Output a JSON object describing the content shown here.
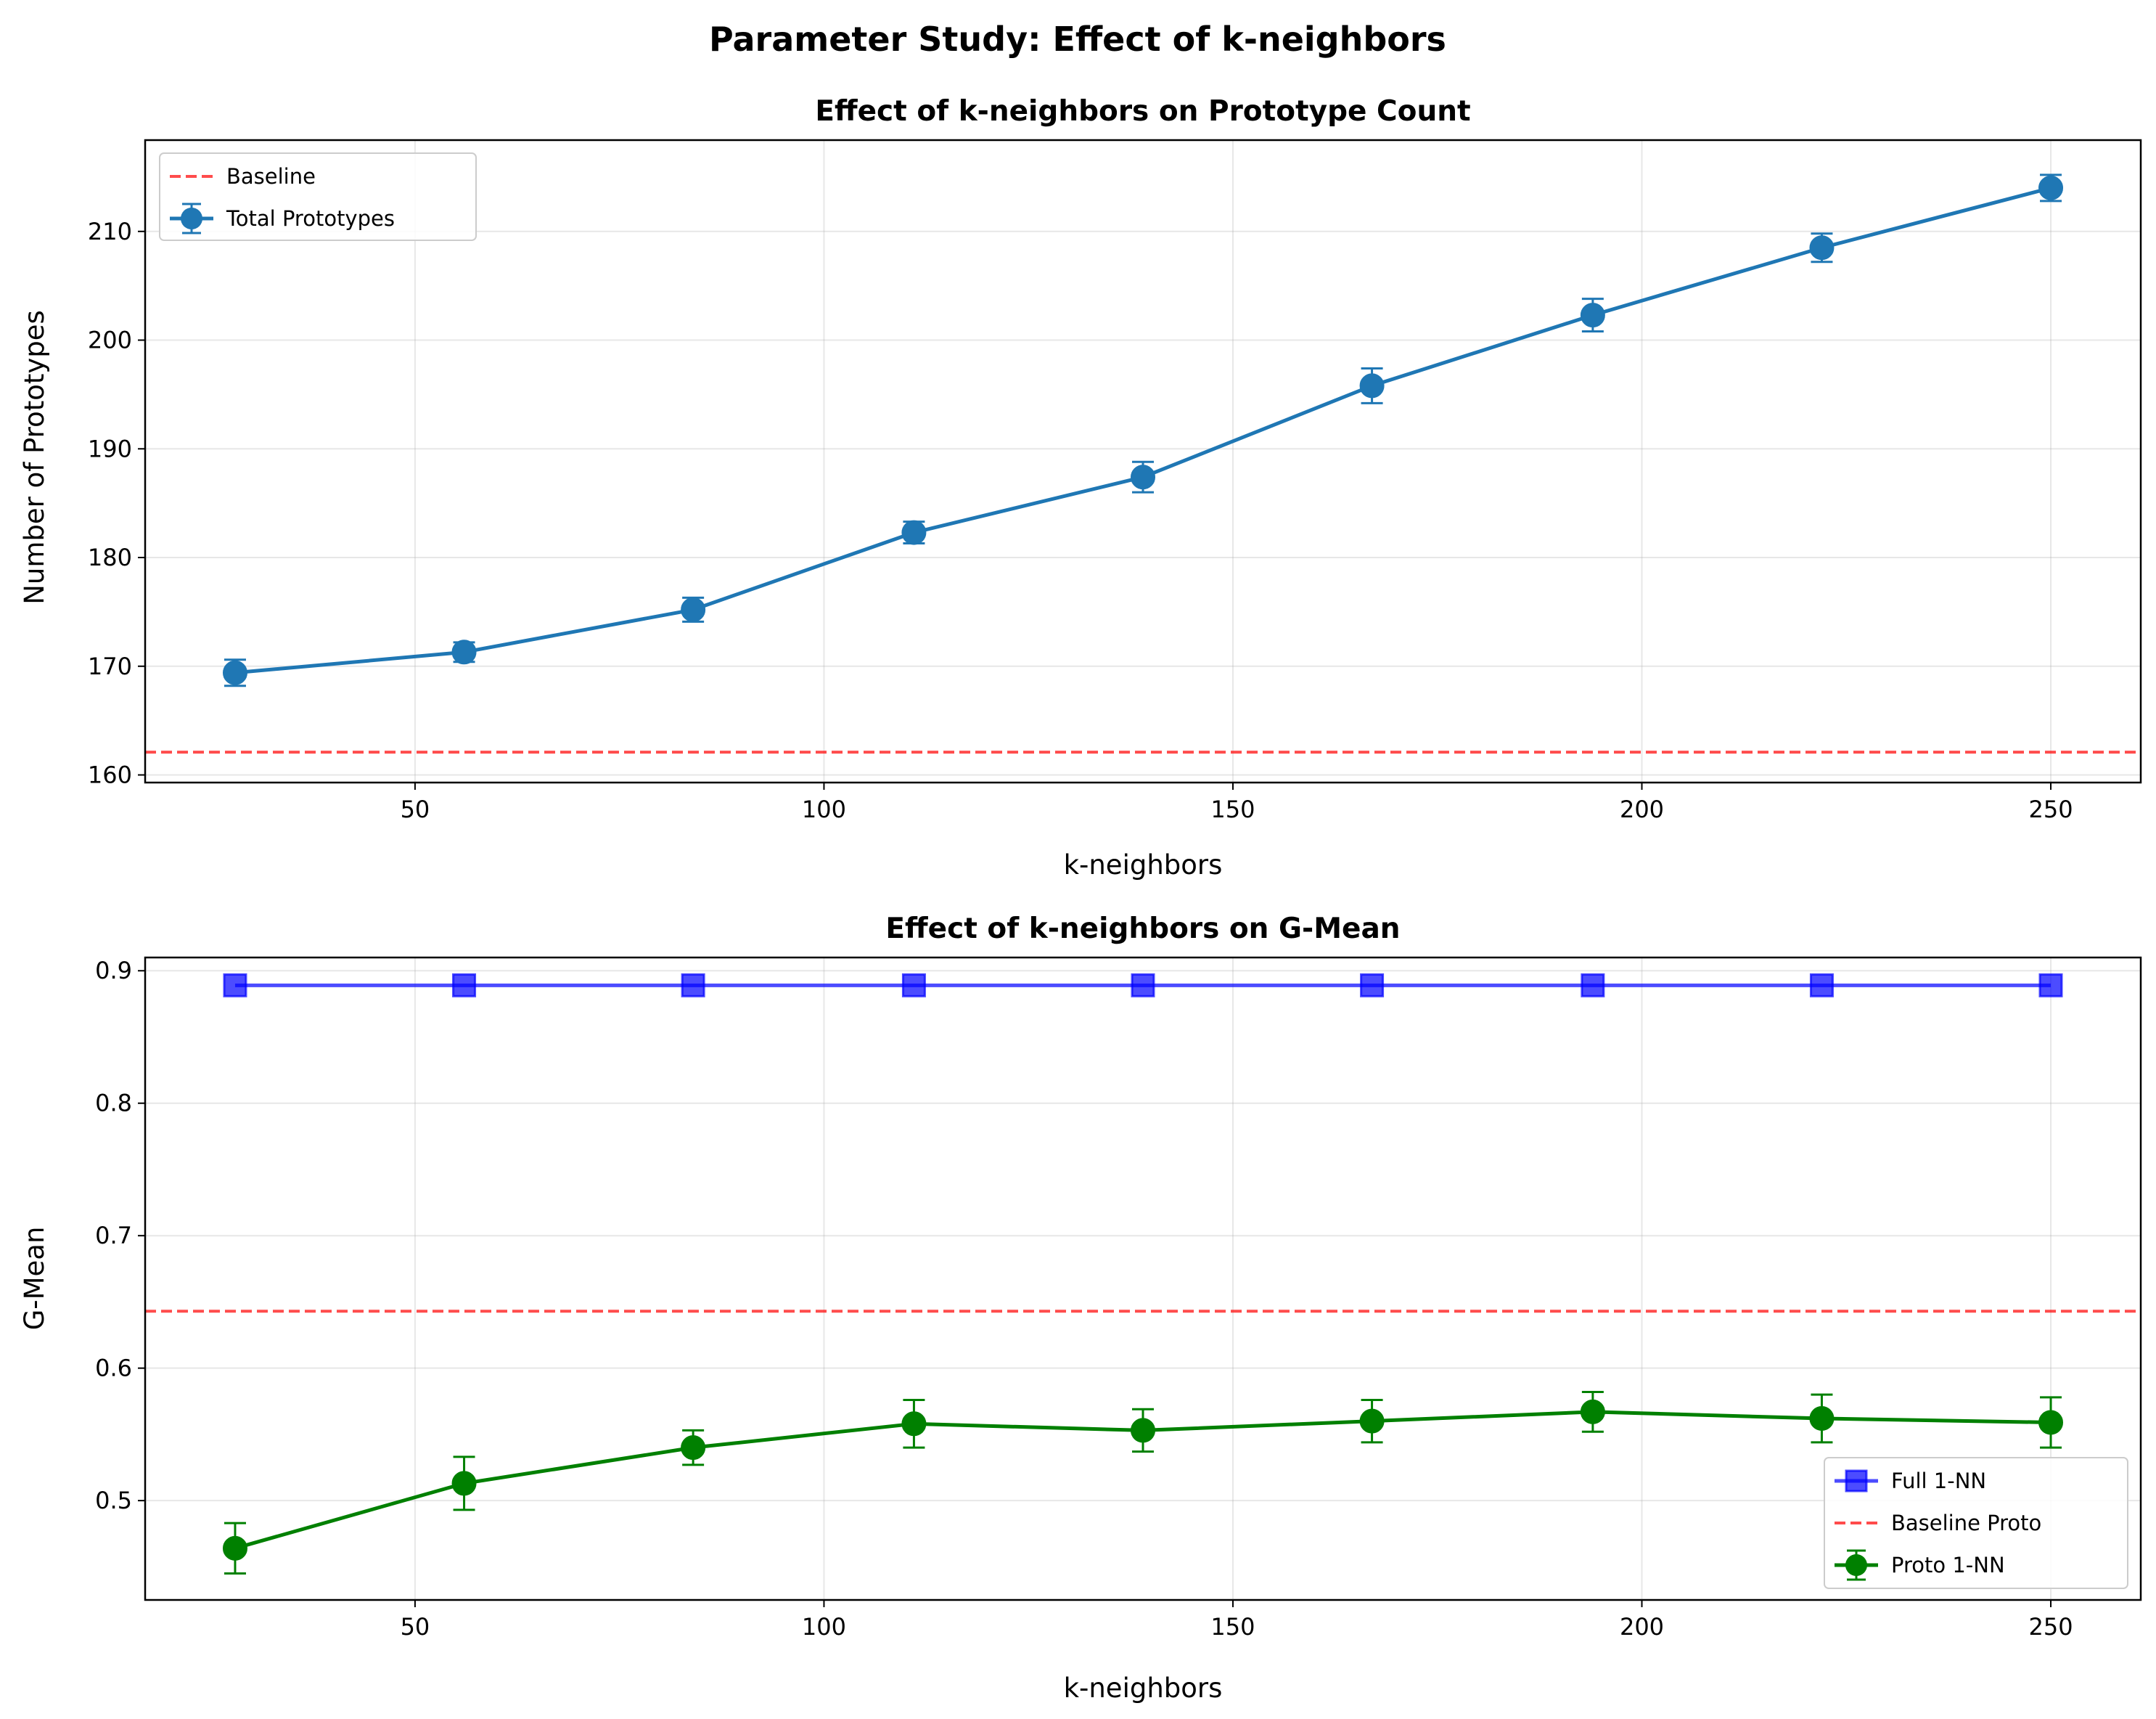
{
  "figure": {
    "suptitle": "Parameter Study: Effect of k-neighbors"
  },
  "chart_data": [
    {
      "type": "line",
      "title": "Effect of k-neighbors on Prototype Count",
      "xlabel": "k-neighbors",
      "ylabel": "Number of Prototypes",
      "xlim": [
        17,
        261
      ],
      "ylim": [
        159.3,
        218.4
      ],
      "xticks": [
        50,
        100,
        150,
        200,
        250
      ],
      "yticks": [
        160,
        170,
        180,
        190,
        200,
        210
      ],
      "grid": true,
      "legend_position": "upper left",
      "x": [
        28,
        56,
        84,
        111,
        139,
        167,
        194,
        222,
        250
      ],
      "series": [
        {
          "name": "Total Prototypes",
          "kind": "errorbar-line",
          "color": "#1f77b4",
          "marker": "circle",
          "values": [
            169.4,
            171.3,
            175.2,
            182.3,
            187.4,
            195.8,
            202.3,
            208.5,
            214.0
          ],
          "errors": [
            1.2,
            0.9,
            1.1,
            1.0,
            1.4,
            1.6,
            1.5,
            1.3,
            1.2
          ]
        },
        {
          "name": "Baseline",
          "kind": "hline",
          "color": "#ff0000",
          "value": 162.1
        }
      ],
      "legend_order": [
        "Baseline",
        "Total Prototypes"
      ]
    },
    {
      "type": "line",
      "title": "Effect of k-neighbors on G-Mean",
      "xlabel": "k-neighbors",
      "ylabel": "G-Mean",
      "xlim": [
        17,
        261
      ],
      "ylim": [
        0.425,
        0.91
      ],
      "xticks": [
        50,
        100,
        150,
        200,
        250
      ],
      "yticks": [
        0.5,
        0.6,
        0.7,
        0.8,
        0.9
      ],
      "grid": true,
      "legend_position": "lower right",
      "x": [
        28,
        56,
        84,
        111,
        139,
        167,
        194,
        222,
        250
      ],
      "series": [
        {
          "name": "Full 1-NN",
          "kind": "line",
          "color": "#0000ff",
          "marker": "square",
          "values": [
            0.889,
            0.889,
            0.889,
            0.889,
            0.889,
            0.889,
            0.889,
            0.889,
            0.889
          ]
        },
        {
          "name": "Baseline Proto",
          "kind": "hline",
          "color": "#ff0000",
          "value": 0.643
        },
        {
          "name": "Proto 1-NN",
          "kind": "errorbar-line",
          "color": "#008000",
          "marker": "circle",
          "values": [
            0.464,
            0.513,
            0.54,
            0.558,
            0.553,
            0.56,
            0.567,
            0.562,
            0.559
          ],
          "errors": [
            0.019,
            0.02,
            0.013,
            0.018,
            0.016,
            0.016,
            0.015,
            0.018,
            0.019
          ]
        }
      ],
      "legend_order": [
        "Full 1-NN",
        "Baseline Proto",
        "Proto 1-NN"
      ]
    }
  ]
}
